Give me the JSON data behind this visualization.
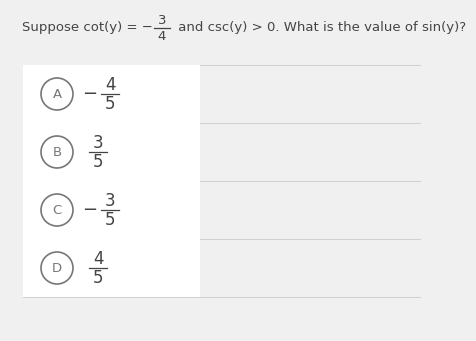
{
  "bg_color": "#f0f0f0",
  "white_bg": "#ffffff",
  "question_before": "Suppose cot(y) = −",
  "question_after": " and csc(y) > 0. What is the value of sin(y)?",
  "q_num": "3",
  "q_den": "4",
  "options": [
    {
      "label": "A",
      "sign": "−",
      "num": "4",
      "den": "5"
    },
    {
      "label": "B",
      "sign": "",
      "num": "3",
      "den": "5"
    },
    {
      "label": "C",
      "sign": "−",
      "num": "3",
      "den": "5"
    },
    {
      "label": "D",
      "sign": "",
      "num": "4",
      "den": "5"
    }
  ],
  "circle_color": "#777777",
  "text_color": "#444444",
  "sep_color": "#d0d0d0",
  "font_size_question": 9.5,
  "font_size_option": 12,
  "font_size_label": 9.5
}
